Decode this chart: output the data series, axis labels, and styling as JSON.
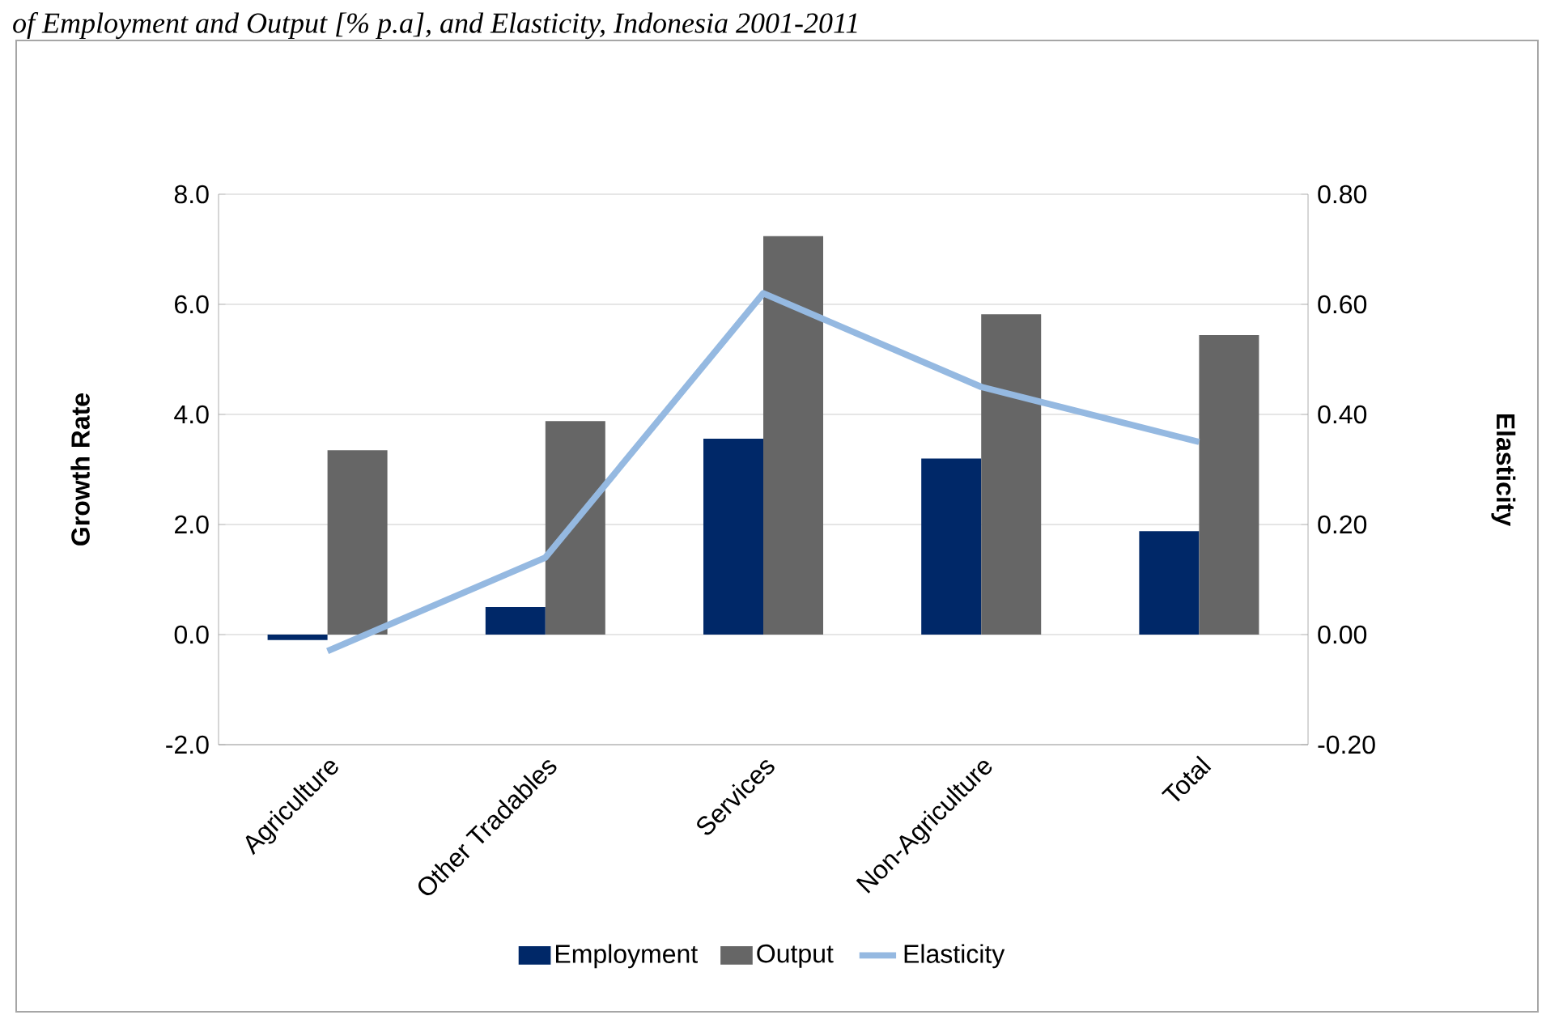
{
  "chart_data": {
    "type": "bar",
    "title": "of Employment and Output [% p.a], and Elasticity, Indonesia 2001-2011",
    "categories": [
      "Agriculture",
      "Other Tradables",
      "Services",
      "Non-Agriculture",
      "Total"
    ],
    "series": [
      {
        "name": "Employment",
        "color": "#002868",
        "values": [
          -0.1,
          0.5,
          3.56,
          3.2,
          1.88
        ]
      },
      {
        "name": "Output",
        "color": "#666666",
        "values": [
          3.35,
          3.88,
          7.24,
          5.82,
          5.44
        ]
      },
      {
        "name": "Elasticity",
        "type": "line",
        "axis": "y2",
        "color": "#95b9e1",
        "values": [
          -0.03,
          0.14,
          0.62,
          0.45,
          0.35
        ]
      }
    ],
    "ylabel": "Growth Rate",
    "y2label": "Elasticity",
    "ylim": [
      -2,
      8
    ],
    "yticks": [
      {
        "value": -2,
        "label": "-2.0"
      },
      {
        "value": 0,
        "label": "0.0"
      },
      {
        "value": 2,
        "label": "2.0"
      },
      {
        "value": 4,
        "label": "4.0"
      },
      {
        "value": 6,
        "label": "6.0"
      },
      {
        "value": 8,
        "label": "8.0"
      }
    ],
    "y2lim": [
      -0.2,
      0.8
    ],
    "y2ticks": [
      {
        "value": -0.2,
        "label": "-0.20"
      },
      {
        "value": 0,
        "label": "0.00"
      },
      {
        "value": 0.2,
        "label": "0.20"
      },
      {
        "value": 0.4,
        "label": "0.40"
      },
      {
        "value": 0.6,
        "label": "0.60"
      },
      {
        "value": 0.8,
        "label": "0.80"
      }
    ],
    "grid": "y",
    "legend": "bottom",
    "marker": "none",
    "line_style": "solid"
  }
}
